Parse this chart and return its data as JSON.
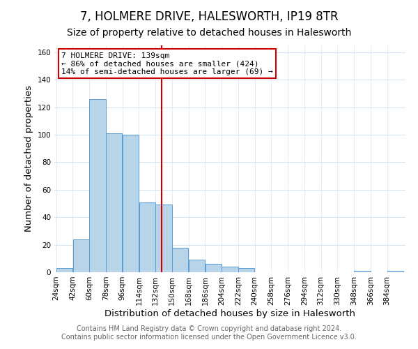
{
  "title": "7, HOLMERE DRIVE, HALESWORTH, IP19 8TR",
  "subtitle": "Size of property relative to detached houses in Halesworth",
  "xlabel": "Distribution of detached houses by size in Halesworth",
  "ylabel": "Number of detached properties",
  "bar_edges": [
    24,
    42,
    60,
    78,
    96,
    114,
    132,
    150,
    168,
    186,
    204,
    222,
    240,
    258,
    276,
    294,
    312,
    330,
    348,
    366,
    384
  ],
  "bar_heights": [
    3,
    24,
    126,
    101,
    100,
    51,
    49,
    18,
    9,
    6,
    4,
    3,
    0,
    0,
    0,
    0,
    0,
    0,
    1,
    0,
    1
  ],
  "bar_color": "#b8d4e8",
  "bar_edgecolor": "#5b9bd5",
  "vline_x": 139,
  "vline_color": "#cc0000",
  "annotation_line1": "7 HOLMERE DRIVE: 139sqm",
  "annotation_line2": "← 86% of detached houses are smaller (424)",
  "annotation_line3": "14% of semi-detached houses are larger (69) →",
  "annotation_box_color": "#ffffff",
  "annotation_box_edgecolor": "#cc0000",
  "ylim": [
    0,
    165
  ],
  "yticks": [
    0,
    20,
    40,
    60,
    80,
    100,
    120,
    140,
    160
  ],
  "footer1": "Contains HM Land Registry data © Crown copyright and database right 2024.",
  "footer2": "Contains public sector information licensed under the Open Government Licence v3.0.",
  "background_color": "#ffffff",
  "plot_background": "#ffffff",
  "grid_color": "#d8e4f0",
  "title_fontsize": 12,
  "subtitle_fontsize": 10,
  "tick_label_fontsize": 7.5,
  "axis_label_fontsize": 9.5,
  "footer_fontsize": 7
}
